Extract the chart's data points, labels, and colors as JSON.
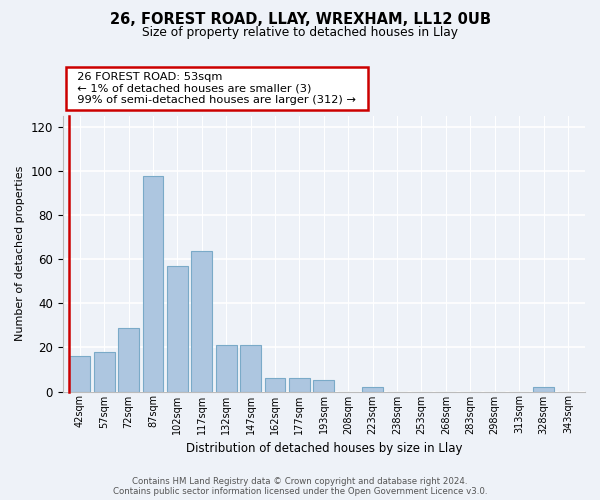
{
  "title": "26, FOREST ROAD, LLAY, WREXHAM, LL12 0UB",
  "subtitle": "Size of property relative to detached houses in Llay",
  "xlabel": "Distribution of detached houses by size in Llay",
  "ylabel": "Number of detached properties",
  "bar_labels": [
    "42sqm",
    "57sqm",
    "72sqm",
    "87sqm",
    "102sqm",
    "117sqm",
    "132sqm",
    "147sqm",
    "162sqm",
    "177sqm",
    "193sqm",
    "208sqm",
    "223sqm",
    "238sqm",
    "253sqm",
    "268sqm",
    "283sqm",
    "298sqm",
    "313sqm",
    "328sqm",
    "343sqm"
  ],
  "bar_values": [
    16,
    18,
    29,
    98,
    57,
    64,
    21,
    21,
    6,
    6,
    5,
    0,
    2,
    0,
    0,
    0,
    0,
    0,
    0,
    2,
    0
  ],
  "bar_color": "#adc6e0",
  "bar_edge_color": "#7aaac8",
  "highlight_color": "#cc0000",
  "ylim": [
    0,
    125
  ],
  "yticks": [
    0,
    20,
    40,
    60,
    80,
    100,
    120
  ],
  "annotation_title": "26 FOREST ROAD: 53sqm",
  "annotation_line1": "← 1% of detached houses are smaller (3)",
  "annotation_line2": "99% of semi-detached houses are larger (312) →",
  "annotation_box_color": "#ffffff",
  "annotation_box_edge": "#cc0000",
  "footer_line1": "Contains HM Land Registry data © Crown copyright and database right 2024.",
  "footer_line2": "Contains public sector information licensed under the Open Government Licence v3.0.",
  "bg_color": "#eef2f8"
}
